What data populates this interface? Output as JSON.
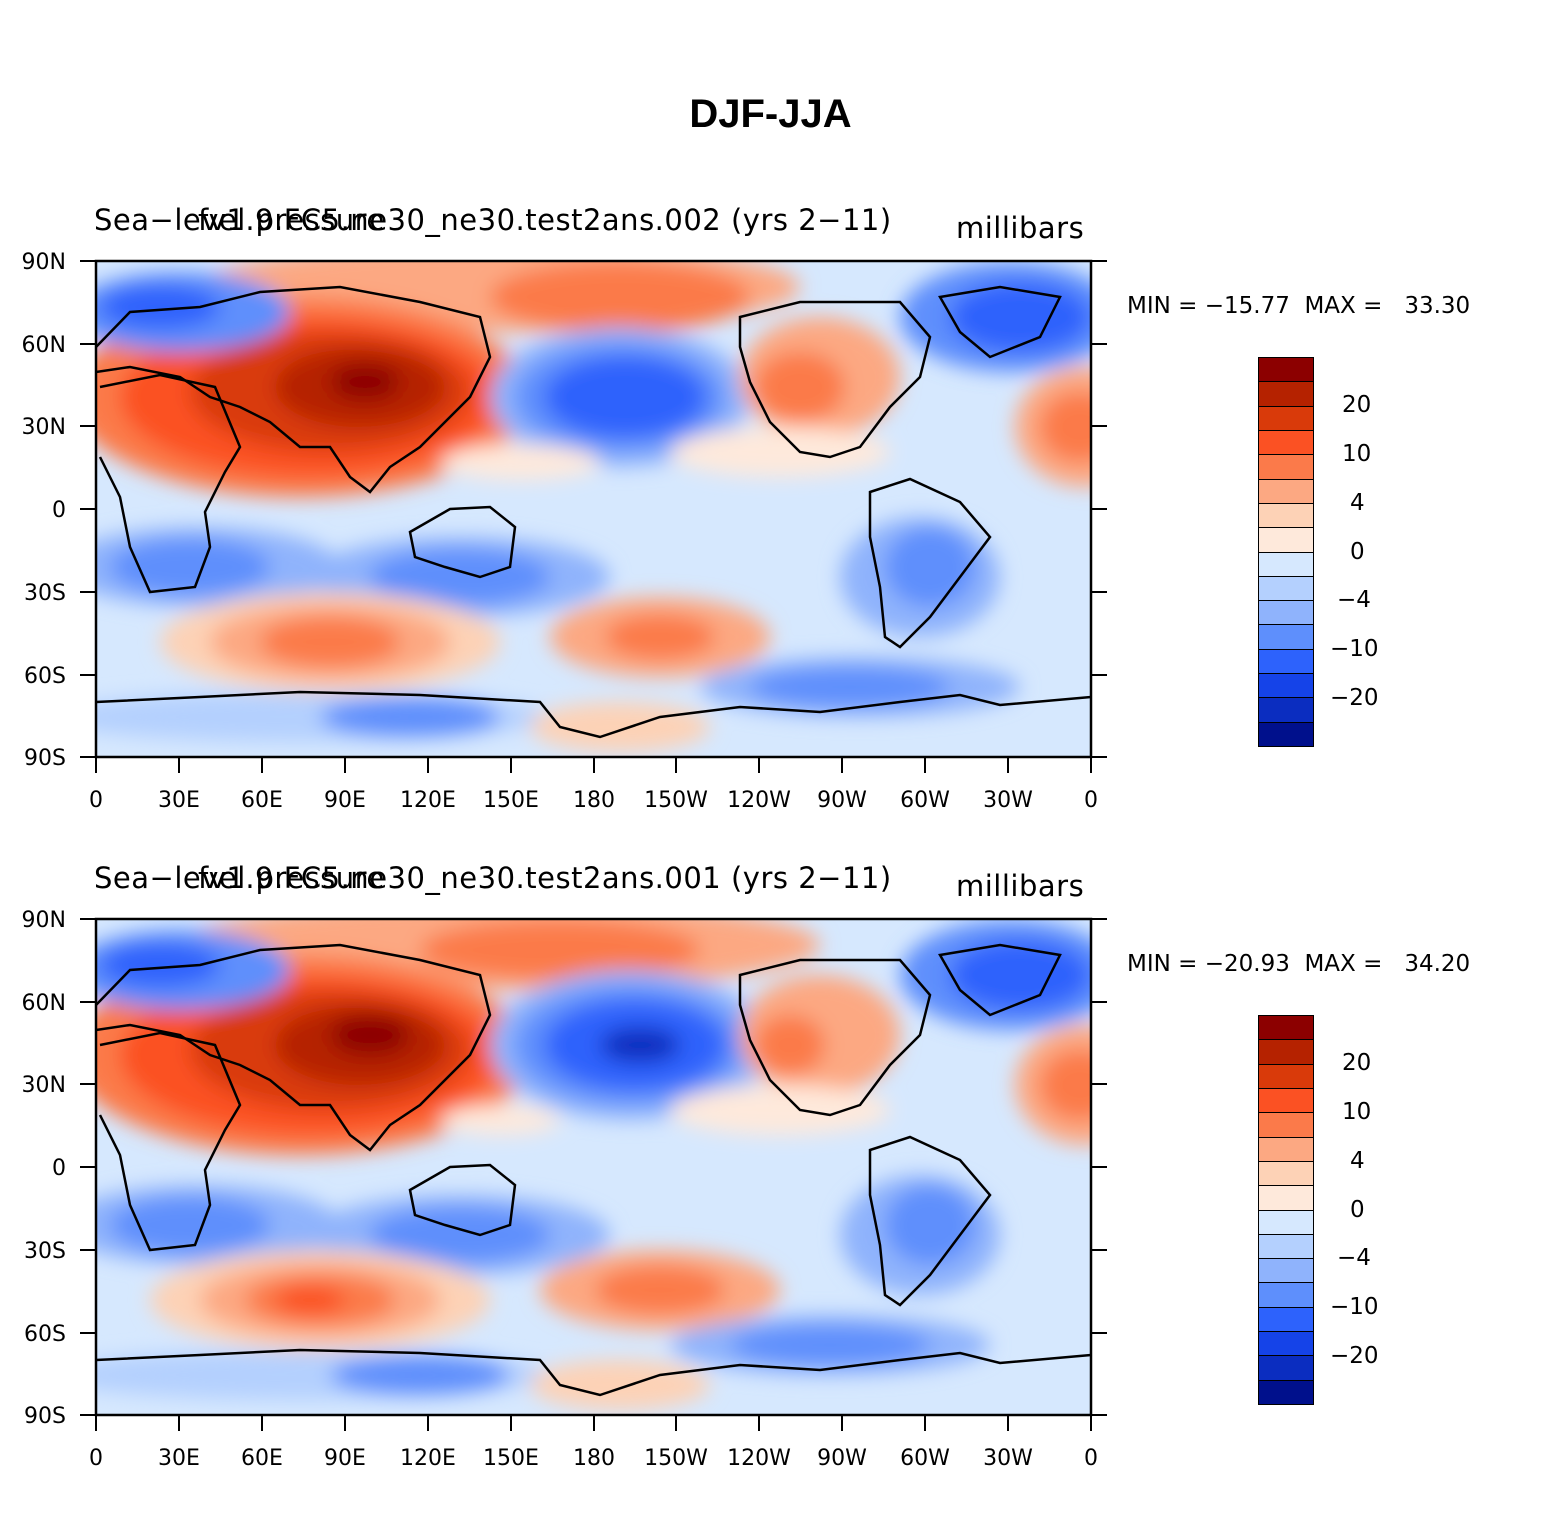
{
  "title": "DJF-JJA",
  "x_ticks": [
    "0",
    "30E",
    "60E",
    "90E",
    "120E",
    "150E",
    "180",
    "150W",
    "120W",
    "90W",
    "60W",
    "30W",
    "0"
  ],
  "y_ticks": [
    "90N",
    "60N",
    "30N",
    "0",
    "30S",
    "60S",
    "90S"
  ],
  "colorbar": {
    "colors": [
      "#8c0000",
      "#b52200",
      "#d93a0a",
      "#fb5123",
      "#fb7a4a",
      "#fca882",
      "#fdd2b6",
      "#fee9db",
      "#d6e8fe",
      "#b4d0fe",
      "#8fb3fc",
      "#5e8ffc",
      "#2d62fc",
      "#1543e8",
      "#0b2dc0",
      "#00108c"
    ],
    "labels": [
      "20",
      "10",
      "4",
      "0",
      "−4",
      "−10",
      "−20"
    ]
  },
  "panels": [
    {
      "name": "Sea−level pressure",
      "case": "fv1.9.FC5.ne30_ne30.test2ans.002 (yrs 2−11)",
      "units": "millibars",
      "min": "−15.77",
      "max": "33.30",
      "minmax_text": "MIN = −15.77  MAX =   33.30"
    },
    {
      "name": "Sea−level pressure",
      "case": "fv1.9.FC5.ne30_ne30.test2ans.001 (yrs 2−11)",
      "units": "millibars",
      "min": "−20.93",
      "max": "34.20",
      "minmax_text": "MIN = −20.93  MAX =   34.20"
    }
  ]
}
